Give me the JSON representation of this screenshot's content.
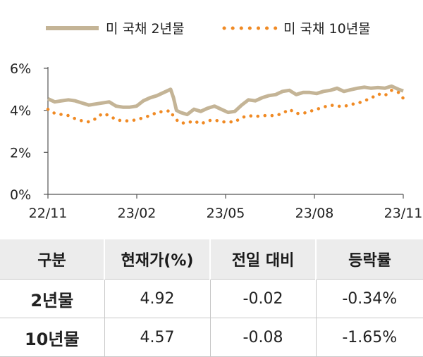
{
  "chart_data": {
    "type": "line",
    "title": "",
    "xlabel": "",
    "ylabel": "",
    "x_start": "2022-11-01",
    "x_end": "2023-11-01",
    "x_ticks": [
      "22/11",
      "23/02",
      "23/05",
      "23/08",
      "23/11"
    ],
    "y_ticks": [
      "0%",
      "2%",
      "4%",
      "6%"
    ],
    "ylim": [
      0,
      6
    ],
    "y_unit": "%",
    "grid": false,
    "legend_position": "top",
    "series": [
      {
        "name": "미 국채 2년물",
        "style": "solid",
        "color": "#c4b496",
        "points": [
          [
            "2022-11-01",
            4.55
          ],
          [
            "2022-11-08",
            4.4
          ],
          [
            "2022-11-15",
            4.45
          ],
          [
            "2022-11-22",
            4.5
          ],
          [
            "2022-11-29",
            4.45
          ],
          [
            "2022-12-06",
            4.35
          ],
          [
            "2022-12-13",
            4.25
          ],
          [
            "2022-12-20",
            4.3
          ],
          [
            "2022-12-27",
            4.35
          ],
          [
            "2023-01-03",
            4.4
          ],
          [
            "2023-01-10",
            4.2
          ],
          [
            "2023-01-17",
            4.15
          ],
          [
            "2023-01-24",
            4.15
          ],
          [
            "2023-01-31",
            4.2
          ],
          [
            "2023-02-07",
            4.45
          ],
          [
            "2023-02-14",
            4.6
          ],
          [
            "2023-02-21",
            4.7
          ],
          [
            "2023-02-28",
            4.85
          ],
          [
            "2023-03-07",
            5.0
          ],
          [
            "2023-03-10",
            4.6
          ],
          [
            "2023-03-13",
            4.0
          ],
          [
            "2023-03-17",
            3.9
          ],
          [
            "2023-03-24",
            3.8
          ],
          [
            "2023-03-31",
            4.05
          ],
          [
            "2023-04-07",
            3.95
          ],
          [
            "2023-04-14",
            4.1
          ],
          [
            "2023-04-21",
            4.2
          ],
          [
            "2023-04-28",
            4.05
          ],
          [
            "2023-05-05",
            3.9
          ],
          [
            "2023-05-12",
            3.95
          ],
          [
            "2023-05-19",
            4.25
          ],
          [
            "2023-05-26",
            4.5
          ],
          [
            "2023-06-02",
            4.45
          ],
          [
            "2023-06-09",
            4.6
          ],
          [
            "2023-06-16",
            4.7
          ],
          [
            "2023-06-23",
            4.75
          ],
          [
            "2023-06-30",
            4.9
          ],
          [
            "2023-07-07",
            4.95
          ],
          [
            "2023-07-14",
            4.75
          ],
          [
            "2023-07-21",
            4.85
          ],
          [
            "2023-07-28",
            4.85
          ],
          [
            "2023-08-04",
            4.8
          ],
          [
            "2023-08-11",
            4.9
          ],
          [
            "2023-08-18",
            4.95
          ],
          [
            "2023-08-25",
            5.05
          ],
          [
            "2023-09-01",
            4.9
          ],
          [
            "2023-09-08",
            4.98
          ],
          [
            "2023-09-15",
            5.05
          ],
          [
            "2023-09-22",
            5.1
          ],
          [
            "2023-09-29",
            5.05
          ],
          [
            "2023-10-06",
            5.08
          ],
          [
            "2023-10-13",
            5.05
          ],
          [
            "2023-10-20",
            5.15
          ],
          [
            "2023-10-27",
            5.0
          ],
          [
            "2023-11-01",
            4.92
          ]
        ]
      },
      {
        "name": "미 국채 10년물",
        "style": "dotted",
        "color": "#f08a24",
        "points": [
          [
            "2022-11-01",
            4.05
          ],
          [
            "2022-11-08",
            3.85
          ],
          [
            "2022-11-15",
            3.8
          ],
          [
            "2022-11-22",
            3.75
          ],
          [
            "2022-11-29",
            3.6
          ],
          [
            "2022-12-06",
            3.5
          ],
          [
            "2022-12-13",
            3.45
          ],
          [
            "2022-12-20",
            3.6
          ],
          [
            "2022-12-27",
            3.85
          ],
          [
            "2023-01-03",
            3.75
          ],
          [
            "2023-01-10",
            3.55
          ],
          [
            "2023-01-17",
            3.5
          ],
          [
            "2023-01-24",
            3.5
          ],
          [
            "2023-01-31",
            3.55
          ],
          [
            "2023-02-07",
            3.65
          ],
          [
            "2023-02-14",
            3.75
          ],
          [
            "2023-02-21",
            3.9
          ],
          [
            "2023-02-28",
            3.95
          ],
          [
            "2023-03-07",
            3.98
          ],
          [
            "2023-03-10",
            3.7
          ],
          [
            "2023-03-13",
            3.55
          ],
          [
            "2023-03-17",
            3.4
          ],
          [
            "2023-03-24",
            3.4
          ],
          [
            "2023-03-31",
            3.5
          ],
          [
            "2023-04-07",
            3.35
          ],
          [
            "2023-04-14",
            3.5
          ],
          [
            "2023-04-21",
            3.55
          ],
          [
            "2023-04-28",
            3.45
          ],
          [
            "2023-05-05",
            3.45
          ],
          [
            "2023-05-12",
            3.45
          ],
          [
            "2023-05-19",
            3.65
          ],
          [
            "2023-05-26",
            3.75
          ],
          [
            "2023-06-02",
            3.7
          ],
          [
            "2023-06-09",
            3.75
          ],
          [
            "2023-06-16",
            3.75
          ],
          [
            "2023-06-23",
            3.75
          ],
          [
            "2023-06-30",
            3.85
          ],
          [
            "2023-07-07",
            4.05
          ],
          [
            "2023-07-14",
            3.85
          ],
          [
            "2023-07-21",
            3.85
          ],
          [
            "2023-07-28",
            3.95
          ],
          [
            "2023-08-04",
            4.05
          ],
          [
            "2023-08-11",
            4.15
          ],
          [
            "2023-08-18",
            4.25
          ],
          [
            "2023-08-25",
            4.2
          ],
          [
            "2023-09-01",
            4.18
          ],
          [
            "2023-09-08",
            4.28
          ],
          [
            "2023-09-15",
            4.33
          ],
          [
            "2023-09-22",
            4.45
          ],
          [
            "2023-09-29",
            4.58
          ],
          [
            "2023-10-06",
            4.78
          ],
          [
            "2023-10-13",
            4.7
          ],
          [
            "2023-10-20",
            4.95
          ],
          [
            "2023-10-27",
            4.85
          ],
          [
            "2023-11-01",
            4.57
          ]
        ]
      }
    ]
  },
  "table": {
    "headers": [
      "구분",
      "현재가(%)",
      "전일 대비",
      "등락률"
    ],
    "rows": [
      [
        "2년물",
        "4.92",
        "-0.02",
        "-0.34%"
      ],
      [
        "10년물",
        "4.57",
        "-0.08",
        "-1.65%"
      ]
    ]
  }
}
